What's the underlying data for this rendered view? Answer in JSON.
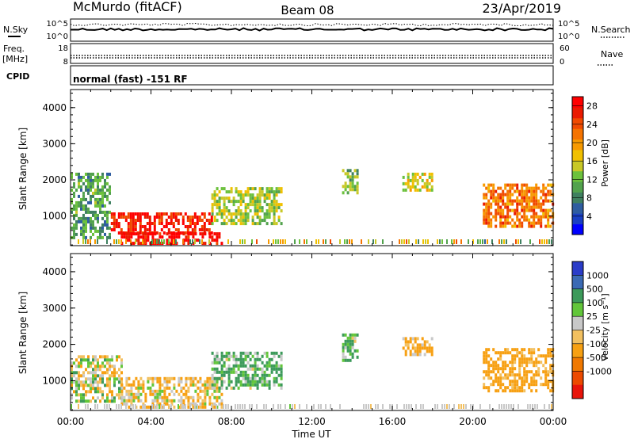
{
  "header": {
    "station": "McMurdo (fitACF)",
    "beam": "Beam 08",
    "date": "23/Apr/2019"
  },
  "strips": {
    "nsky_label": "N.Sky",
    "nsky_ticks": [
      "10^5",
      "10^0"
    ],
    "nsearch_label": "N.Search",
    "nsearch_ticks": [
      "10^5",
      "10^0"
    ],
    "freq_label_line1": "Freq.",
    "freq_label_line2": "[MHz]",
    "freq_ticks": [
      "18",
      "8"
    ],
    "nave_label": "Nave",
    "nave_ticks": [
      "60",
      "0"
    ],
    "cpid_label": "CPID",
    "cpid_text": "normal (fast) -151 RF"
  },
  "chart_data": [
    {
      "type": "heatmap",
      "name": "power",
      "ylabel": "Slant Range [km]",
      "ylim": [
        180,
        4500
      ],
      "yticks": [
        "1000",
        "2000",
        "3000",
        "4000"
      ],
      "xlim": [
        "00:00",
        "24:00"
      ],
      "colorbar": {
        "label": "Power [dB]",
        "ticks": [
          "4",
          "8",
          "12",
          "16",
          "20",
          "24",
          "28"
        ],
        "range": [
          0,
          30
        ],
        "colors": [
          "#0000ff",
          "#1a3fc4",
          "#2f5da0",
          "#3f8060",
          "#52a24d",
          "#6cc13c",
          "#c8c826",
          "#f0c000",
          "#f79a00",
          "#f57300",
          "#f04a00",
          "#ea1a00",
          "#ff0000"
        ]
      },
      "echo_regions": [
        {
          "t0": 0.0,
          "t1": 2.0,
          "r0": 400,
          "r1": 2200,
          "power": 10
        },
        {
          "t0": 2.0,
          "t1": 7.0,
          "r0": 550,
          "r1": 1100,
          "power": 27
        },
        {
          "t0": 2.5,
          "t1": 7.5,
          "r0": 250,
          "r1": 550,
          "power": 29
        },
        {
          "t0": 7.0,
          "t1": 10.5,
          "r0": 800,
          "r1": 1800,
          "power": 14
        },
        {
          "t0": 13.5,
          "t1": 14.3,
          "r0": 1600,
          "r1": 2300,
          "power": 12
        },
        {
          "t0": 16.5,
          "t1": 18.0,
          "r0": 1700,
          "r1": 2200,
          "power": 16
        },
        {
          "t0": 20.5,
          "t1": 24.0,
          "r0": 700,
          "r1": 1900,
          "power": 22
        }
      ]
    },
    {
      "type": "heatmap",
      "name": "velocity",
      "ylabel": "Slant Range [km]",
      "ylim": [
        180,
        4500
      ],
      "yticks": [
        "1000",
        "2000",
        "3000",
        "4000"
      ],
      "xlim": [
        "00:00",
        "24:00"
      ],
      "xticks": [
        "00:00",
        "04:00",
        "08:00",
        "12:00",
        "16:00",
        "20:00",
        "00:00"
      ],
      "xlabel": "Time UT",
      "colorbar": {
        "label": "Velocity [m s⁻¹]",
        "ticks": [
          "1000",
          "500",
          "100",
          "25",
          "-25",
          "-100",
          "-500",
          "-1000"
        ],
        "colors": [
          "#2a3cc8",
          "#3b6ab4",
          "#3c9a5a",
          "#62c63a",
          "#c8c8c8",
          "#f2c060",
          "#f7a012",
          "#f07800",
          "#ec4a00",
          "#e8140a"
        ]
      },
      "echo_regions": [
        {
          "t0": 0.0,
          "t1": 2.5,
          "r0": 400,
          "r1": 1700,
          "velocity": 0
        },
        {
          "t0": 2.5,
          "t1": 7.5,
          "r0": 300,
          "r1": 1100,
          "velocity": -80
        },
        {
          "t0": 7.0,
          "t1": 10.5,
          "r0": 800,
          "r1": 1800,
          "velocity": 120
        },
        {
          "t0": 13.5,
          "t1": 14.3,
          "r0": 1600,
          "r1": 2300,
          "velocity": 120
        },
        {
          "t0": 16.5,
          "t1": 18.0,
          "r0": 1700,
          "r1": 2200,
          "velocity": -150
        },
        {
          "t0": 20.5,
          "t1": 24.0,
          "r0": 700,
          "r1": 1900,
          "velocity": -200
        }
      ]
    }
  ]
}
